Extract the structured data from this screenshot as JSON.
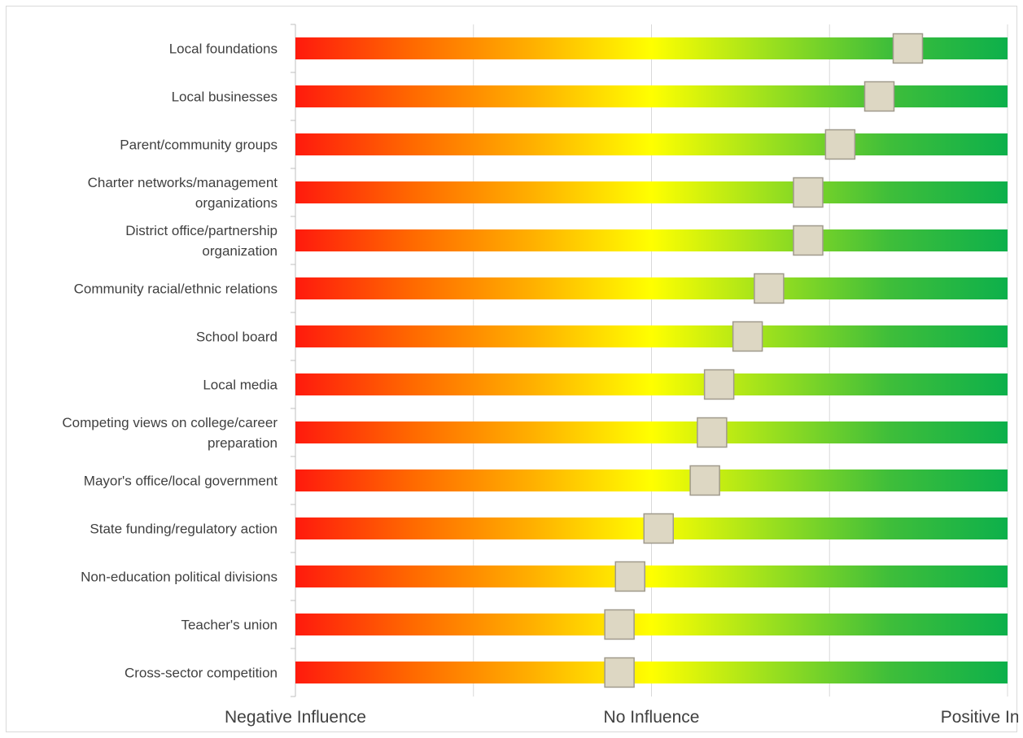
{
  "chart_data": {
    "type": "bar",
    "subtype": "gradient-scale-marker",
    "categories": [
      "Local foundations",
      "Local businesses",
      "Parent/community groups",
      "Charter networks/management organizations",
      "District office/partnership organization",
      "Community racial/ethnic relations",
      "School board",
      "Local media",
      "Competing views on college/career preparation",
      "Mayor's office/local government",
      "State funding/regulatory action",
      "Non-education political divisions",
      "Teacher's union",
      "Cross-sector competition"
    ],
    "category_lines": [
      [
        "Local foundations"
      ],
      [
        "Local businesses"
      ],
      [
        "Parent/community groups"
      ],
      [
        "Charter networks/management",
        "organizations"
      ],
      [
        "District office/partnership",
        "organization"
      ],
      [
        "Community racial/ethnic relations"
      ],
      [
        "School board"
      ],
      [
        "Local media"
      ],
      [
        "Competing views on college/career",
        "preparation"
      ],
      [
        "Mayor's office/local government"
      ],
      [
        "State funding/regulatory action"
      ],
      [
        "Non-education political divisions"
      ],
      [
        "Teacher's union"
      ],
      [
        "Cross-sector competition"
      ]
    ],
    "values": [
      0.72,
      0.64,
      0.53,
      0.44,
      0.44,
      0.33,
      0.27,
      0.19,
      0.17,
      0.15,
      0.02,
      -0.06,
      -0.09,
      -0.09
    ],
    "xlim": [
      -1,
      1
    ],
    "x_tick_values": [
      -1,
      -0.5,
      0,
      0.5,
      1
    ],
    "x_tick_labels": [
      {
        "value": -1,
        "label": "Negative Influence"
      },
      {
        "value": 0,
        "label": "No Influence"
      },
      {
        "value": 1,
        "label": "Positive Influence"
      }
    ],
    "grid": true,
    "gradient_colors": [
      "#ff1a0d",
      "#ff6a00",
      "#ffb000",
      "#ffff00",
      "#9be01e",
      "#3fbe3a",
      "#0db04b"
    ],
    "marker_color": "#ddd7c3",
    "marker_border": "#a09a8c",
    "title": "",
    "xlabel": "",
    "ylabel": ""
  }
}
